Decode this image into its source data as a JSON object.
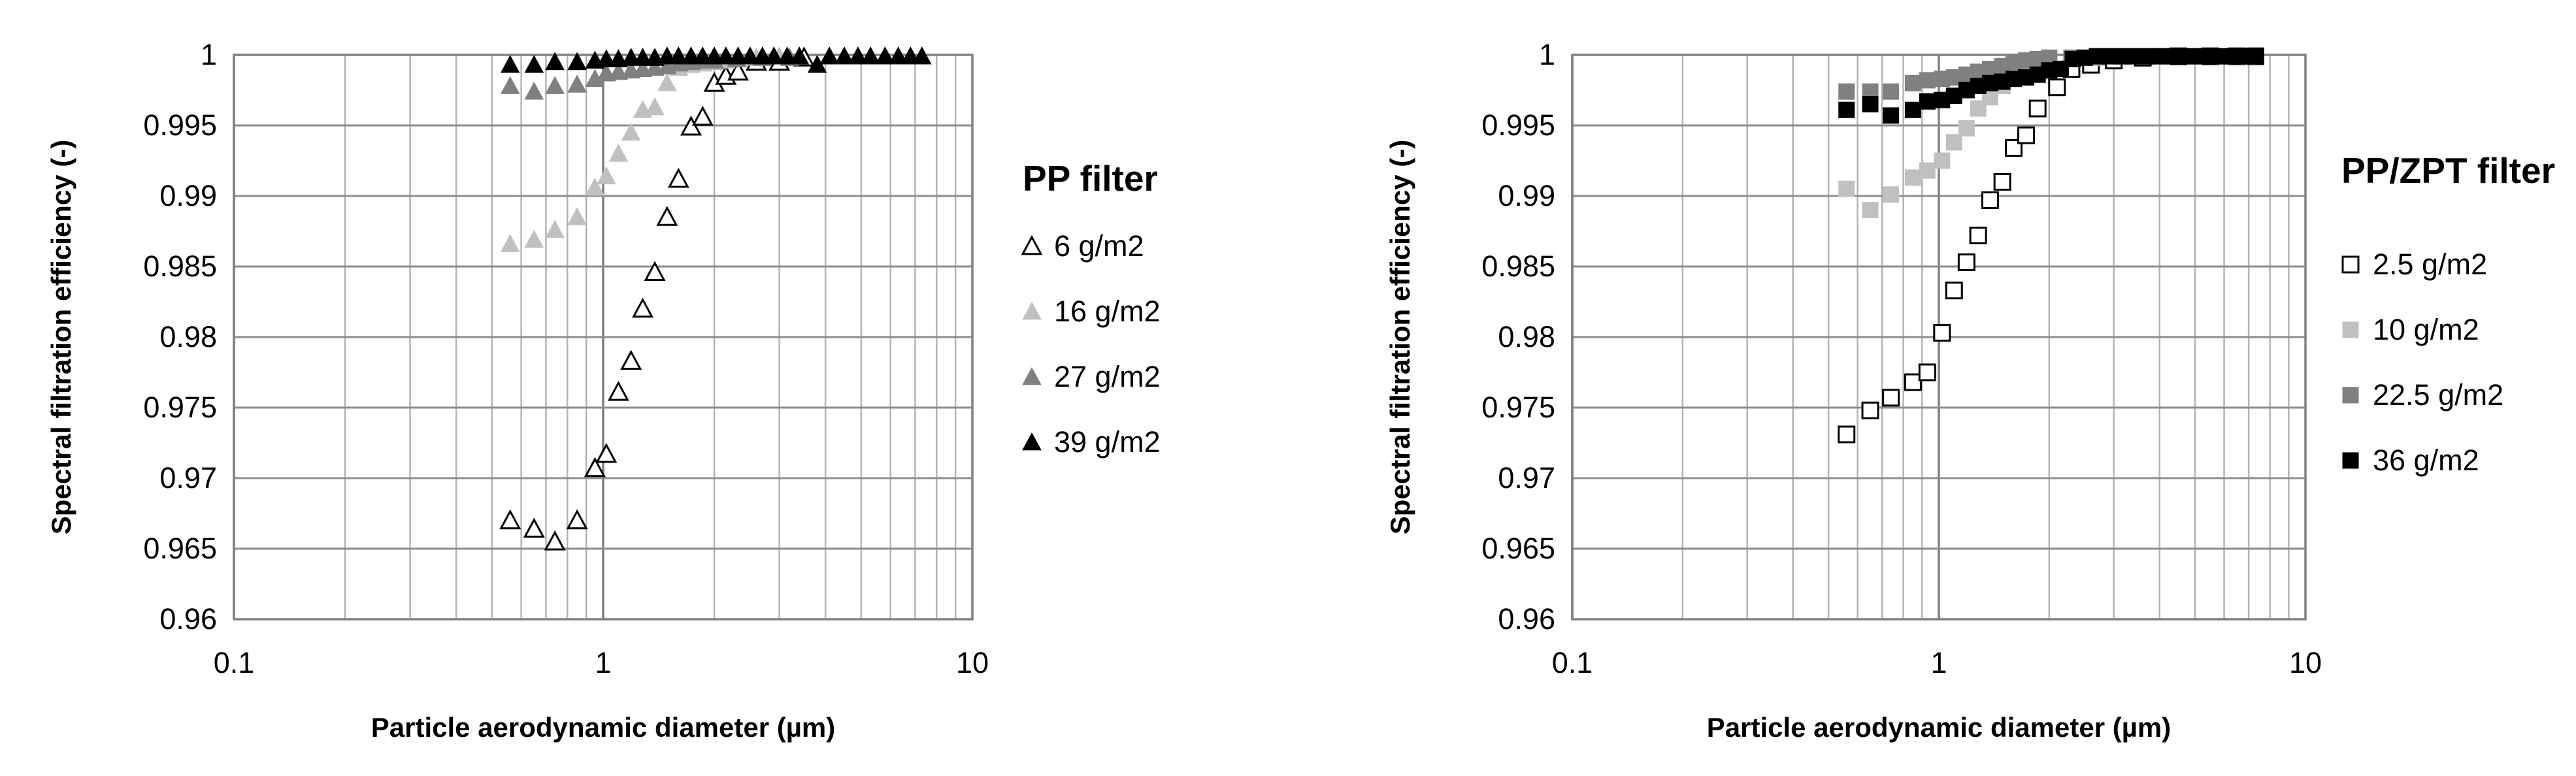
{
  "chart_data": [
    {
      "type": "scatter",
      "x_scale": "log",
      "xlim": [
        0.1,
        10
      ],
      "ylim": [
        0.96,
        1
      ],
      "xlabel": "Particle aerodynamic diameter (µm)",
      "ylabel": "Spectral filtration efficiency (-)",
      "x_ticks": [
        "0.1",
        "1",
        "10"
      ],
      "y_ticks": [
        "0.96",
        "0.965",
        "0.97",
        "0.975",
        "0.98",
        "0.985",
        "0.99",
        "0.995",
        "1"
      ],
      "grid": true,
      "legend_position": "right",
      "legend_title": "PP filter",
      "series": [
        {
          "name": "6 g/m2",
          "marker": "triangle-open",
          "color": "#000000",
          "points": [
            [
              0.56,
              0.967
            ],
            [
              0.65,
              0.9664
            ],
            [
              0.74,
              0.9655
            ],
            [
              0.85,
              0.967
            ],
            [
              0.95,
              0.9707
            ],
            [
              1.02,
              0.9717
            ],
            [
              1.1,
              0.9761
            ],
            [
              1.19,
              0.9783
            ],
            [
              1.28,
              0.982
            ],
            [
              1.38,
              0.9846
            ],
            [
              1.49,
              0.9885
            ],
            [
              1.6,
              0.9912
            ],
            [
              1.73,
              0.9949
            ],
            [
              1.86,
              0.9956
            ],
            [
              2.0,
              0.998
            ],
            [
              2.15,
              0.9985
            ],
            [
              2.32,
              0.9988
            ],
            [
              2.6,
              0.9995
            ],
            [
              3.0,
              0.9995
            ],
            [
              3.5,
              0.9998
            ]
          ]
        },
        {
          "name": "16 g/m2",
          "marker": "triangle",
          "color": "#c0c0c0",
          "points": [
            [
              0.56,
              0.9866
            ],
            [
              0.65,
              0.9869
            ],
            [
              0.74,
              0.9876
            ],
            [
              0.85,
              0.9885
            ],
            [
              0.95,
              0.9906
            ],
            [
              1.02,
              0.9914
            ],
            [
              1.1,
              0.993
            ],
            [
              1.19,
              0.9945
            ],
            [
              1.28,
              0.9961
            ],
            [
              1.38,
              0.9963
            ],
            [
              1.49,
              0.998
            ],
            [
              1.6,
              0.9991
            ],
            [
              1.73,
              0.9993
            ],
            [
              1.86,
              0.9994
            ],
            [
              2.0,
              0.9995
            ],
            [
              2.15,
              0.9996
            ],
            [
              2.32,
              0.9997
            ],
            [
              2.6,
              0.9998
            ],
            [
              3.0,
              0.9999
            ]
          ]
        },
        {
          "name": "27 g/m2",
          "marker": "triangle",
          "color": "#808080",
          "points": [
            [
              0.56,
              0.9978
            ],
            [
              0.65,
              0.9974
            ],
            [
              0.74,
              0.9978
            ],
            [
              0.85,
              0.9979
            ],
            [
              0.95,
              0.9983
            ],
            [
              1.02,
              0.9987
            ],
            [
              1.1,
              0.9988
            ],
            [
              1.19,
              0.9989
            ],
            [
              1.28,
              0.999
            ],
            [
              1.38,
              0.9991
            ],
            [
              1.49,
              0.9992
            ],
            [
              1.6,
              0.9994
            ],
            [
              1.73,
              0.9995
            ],
            [
              1.86,
              0.9996
            ],
            [
              2.0,
              0.9996
            ],
            [
              2.3,
              0.9997
            ],
            [
              2.7,
              0.9998
            ],
            [
              3.2,
              0.9998
            ]
          ]
        },
        {
          "name": "39 g/m2",
          "marker": "triangle",
          "color": "#000000",
          "points": [
            [
              0.56,
              0.9993
            ],
            [
              0.65,
              0.9993
            ],
            [
              0.74,
              0.9995
            ],
            [
              0.85,
              0.9995
            ],
            [
              0.95,
              0.9996
            ],
            [
              1.02,
              0.9997
            ],
            [
              1.1,
              0.9997
            ],
            [
              1.19,
              0.9998
            ],
            [
              1.28,
              0.9998
            ],
            [
              1.38,
              0.9998
            ],
            [
              1.49,
              0.9999
            ],
            [
              1.6,
              0.9999
            ],
            [
              1.73,
              0.9999
            ],
            [
              1.86,
              0.9999
            ],
            [
              2.0,
              0.9999
            ],
            [
              2.15,
              0.9999
            ],
            [
              2.32,
              0.9999
            ],
            [
              2.5,
              0.9999
            ],
            [
              2.7,
              0.9999
            ],
            [
              2.9,
              0.9999
            ],
            [
              3.15,
              0.9999
            ],
            [
              3.4,
              0.9999
            ],
            [
              3.8,
              0.9993
            ],
            [
              4.1,
              0.9999
            ],
            [
              4.5,
              0.9999
            ],
            [
              4.9,
              0.9999
            ],
            [
              5.3,
              0.9999
            ],
            [
              5.8,
              0.9999
            ],
            [
              6.3,
              0.9999
            ],
            [
              6.8,
              0.9999
            ],
            [
              7.3,
              0.9999
            ]
          ]
        }
      ]
    },
    {
      "type": "scatter",
      "x_scale": "log",
      "xlim": [
        0.1,
        10
      ],
      "ylim": [
        0.96,
        1
      ],
      "xlabel": "Particle aerodynamic diameter (µm)",
      "ylabel": "Spectral filtration efficiency (-)",
      "x_ticks": [
        "0.1",
        "1",
        "10"
      ],
      "y_ticks": [
        "0.96",
        "0.965",
        "0.97",
        "0.975",
        "0.98",
        "0.985",
        "0.99",
        "0.995",
        "1"
      ],
      "grid": true,
      "legend_position": "right",
      "legend_title": "PP/ZPT filter",
      "series": [
        {
          "name": "2.5 g/m2",
          "marker": "square-open",
          "color": "#000000",
          "points": [
            [
              0.56,
              0.9731
            ],
            [
              0.65,
              0.9748
            ],
            [
              0.74,
              0.9757
            ],
            [
              0.85,
              0.9768
            ],
            [
              0.93,
              0.9775
            ],
            [
              1.02,
              0.9803
            ],
            [
              1.1,
              0.9833
            ],
            [
              1.19,
              0.9853
            ],
            [
              1.28,
              0.9872
            ],
            [
              1.38,
              0.9897
            ],
            [
              1.49,
              0.991
            ],
            [
              1.6,
              0.9934
            ],
            [
              1.73,
              0.9943
            ],
            [
              1.86,
              0.9962
            ],
            [
              2.1,
              0.9977
            ],
            [
              2.3,
              0.999
            ],
            [
              2.6,
              0.9993
            ],
            [
              3.0,
              0.9996
            ],
            [
              3.6,
              0.9998
            ],
            [
              4.5,
              0.9999
            ],
            [
              5.5,
              0.9999
            ],
            [
              6.5,
              0.9999
            ],
            [
              7.3,
              0.9999
            ]
          ]
        },
        {
          "name": "10 g/m2",
          "marker": "square",
          "color": "#c0c0c0",
          "points": [
            [
              0.56,
              0.9905
            ],
            [
              0.65,
              0.989
            ],
            [
              0.74,
              0.9901
            ],
            [
              0.85,
              0.9913
            ],
            [
              0.93,
              0.9918
            ],
            [
              1.02,
              0.9925
            ],
            [
              1.1,
              0.9938
            ],
            [
              1.19,
              0.9948
            ],
            [
              1.28,
              0.9962
            ],
            [
              1.38,
              0.997
            ],
            [
              1.49,
              0.9978
            ],
            [
              1.6,
              0.9985
            ],
            [
              1.73,
              0.999
            ],
            [
              1.86,
              0.9993
            ],
            [
              2.0,
              0.9995
            ],
            [
              2.3,
              0.9997
            ],
            [
              2.7,
              0.9998
            ],
            [
              3.2,
              0.9999
            ],
            [
              4.0,
              0.9999
            ],
            [
              5.0,
              0.9999
            ],
            [
              6.0,
              0.9999
            ],
            [
              7.0,
              0.9999
            ]
          ]
        },
        {
          "name": "22.5 g/m2",
          "marker": "square",
          "color": "#808080",
          "points": [
            [
              0.56,
              0.9974
            ],
            [
              0.65,
              0.9974
            ],
            [
              0.74,
              0.9974
            ],
            [
              0.85,
              0.998
            ],
            [
              0.93,
              0.9982
            ],
            [
              1.02,
              0.9983
            ],
            [
              1.1,
              0.9984
            ],
            [
              1.19,
              0.9986
            ],
            [
              1.28,
              0.9988
            ],
            [
              1.38,
              0.999
            ],
            [
              1.49,
              0.9992
            ],
            [
              1.6,
              0.9995
            ],
            [
              1.73,
              0.9996
            ],
            [
              1.86,
              0.9997
            ],
            [
              2.0,
              0.9998
            ],
            [
              2.3,
              0.9998
            ],
            [
              2.7,
              0.9999
            ],
            [
              3.2,
              0.9999
            ],
            [
              4.0,
              0.9999
            ],
            [
              5.0,
              0.9999
            ],
            [
              6.0,
              0.9999
            ],
            [
              7.0,
              0.9999
            ]
          ]
        },
        {
          "name": "36 g/m2",
          "marker": "square",
          "color": "#000000",
          "points": [
            [
              0.56,
              0.9961
            ],
            [
              0.65,
              0.9965
            ],
            [
              0.74,
              0.9957
            ],
            [
              0.85,
              0.9961
            ],
            [
              0.93,
              0.9967
            ],
            [
              1.02,
              0.9968
            ],
            [
              1.1,
              0.9971
            ],
            [
              1.19,
              0.9975
            ],
            [
              1.28,
              0.9978
            ],
            [
              1.38,
              0.998
            ],
            [
              1.49,
              0.9981
            ],
            [
              1.6,
              0.9983
            ],
            [
              1.73,
              0.9984
            ],
            [
              1.86,
              0.9986
            ],
            [
              2.0,
              0.9989
            ],
            [
              2.15,
              0.999
            ],
            [
              2.32,
              0.9997
            ],
            [
              2.5,
              0.9998
            ],
            [
              2.7,
              0.9999
            ],
            [
              2.9,
              0.9999
            ],
            [
              3.15,
              0.9999
            ],
            [
              3.4,
              0.9999
            ],
            [
              3.7,
              0.9999
            ],
            [
              4.0,
              0.9999
            ],
            [
              4.4,
              0.9999
            ],
            [
              4.8,
              0.9999
            ],
            [
              5.3,
              0.9999
            ],
            [
              5.8,
              0.9999
            ],
            [
              6.3,
              0.9999
            ],
            [
              6.8,
              0.9999
            ],
            [
              7.3,
              0.9999
            ]
          ]
        }
      ]
    }
  ]
}
